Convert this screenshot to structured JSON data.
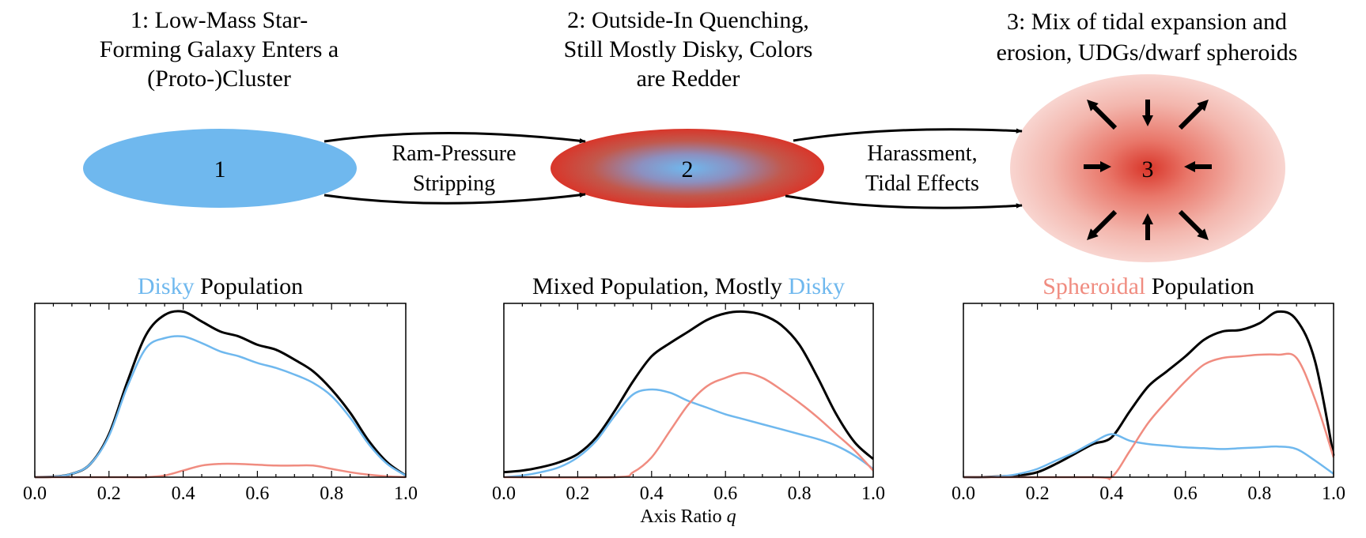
{
  "colors": {
    "disky": "#6fb8ee",
    "spheroidal": "#f08c80",
    "total": "#000000",
    "red_core": "#d9362a"
  },
  "stages": [
    {
      "number": "1",
      "title_lines": [
        "1: Low-Mass Star-",
        "Forming Galaxy Enters a",
        "(Proto-)Cluster"
      ]
    },
    {
      "number": "2",
      "title_lines": [
        "2: Outside-In Quenching,",
        "Still Mostly Disky, Colors",
        "are Redder"
      ]
    },
    {
      "number": "3",
      "title_lines": [
        "3: Mix of tidal expansion and",
        "erosion, UDGs/dwarf spheroids"
      ]
    }
  ],
  "transitions": [
    {
      "lines": [
        "Ram-Pressure",
        "Stripping"
      ]
    },
    {
      "lines": [
        "Harassment,",
        "Tidal Effects"
      ]
    }
  ],
  "x_axis_label": "Axis Ratio",
  "x_axis_symbol": "q",
  "chart_data": [
    {
      "type": "line",
      "title_parts": [
        {
          "text": "Disky",
          "color": "disky"
        },
        {
          "text": " Population",
          "color": "total"
        }
      ],
      "xlim": [
        0.0,
        1.0
      ],
      "ylim": [
        0,
        1.05
      ],
      "xticks": [
        "0.0",
        "0.2",
        "0.4",
        "0.6",
        "0.8",
        "1.0"
      ],
      "series": [
        {
          "color": "total",
          "x": [
            0.0,
            0.05,
            0.1,
            0.15,
            0.2,
            0.25,
            0.3,
            0.35,
            0.4,
            0.45,
            0.5,
            0.55,
            0.6,
            0.65,
            0.7,
            0.75,
            0.8,
            0.85,
            0.9,
            0.95,
            1.0
          ],
          "y": [
            0.0,
            0.003,
            0.02,
            0.08,
            0.26,
            0.58,
            0.86,
            0.98,
            1.0,
            0.94,
            0.88,
            0.85,
            0.8,
            0.77,
            0.71,
            0.64,
            0.53,
            0.39,
            0.22,
            0.09,
            0.01
          ]
        },
        {
          "color": "disky",
          "x": [
            0.0,
            0.05,
            0.1,
            0.15,
            0.2,
            0.25,
            0.3,
            0.35,
            0.4,
            0.45,
            0.5,
            0.55,
            0.6,
            0.65,
            0.7,
            0.75,
            0.8,
            0.85,
            0.9,
            0.95,
            1.0
          ],
          "y": [
            0.0,
            0.003,
            0.02,
            0.08,
            0.25,
            0.55,
            0.78,
            0.84,
            0.85,
            0.81,
            0.76,
            0.73,
            0.69,
            0.66,
            0.62,
            0.57,
            0.49,
            0.36,
            0.2,
            0.08,
            0.01
          ]
        },
        {
          "color": "spheroidal",
          "x": [
            0.0,
            0.2,
            0.25,
            0.3,
            0.35,
            0.4,
            0.45,
            0.5,
            0.55,
            0.6,
            0.65,
            0.7,
            0.75,
            0.8,
            0.85,
            0.9,
            0.95,
            1.0
          ],
          "y": [
            0.0,
            0.0,
            0.0,
            0.0,
            0.01,
            0.04,
            0.07,
            0.08,
            0.08,
            0.075,
            0.07,
            0.07,
            0.07,
            0.05,
            0.03,
            0.015,
            0.005,
            0.0
          ]
        }
      ]
    },
    {
      "type": "line",
      "title_parts": [
        {
          "text": "Mixed Population, Mostly ",
          "color": "total"
        },
        {
          "text": "Disky",
          "color": "disky"
        }
      ],
      "xlim": [
        0.0,
        1.0
      ],
      "ylim": [
        0,
        1.05
      ],
      "xticks": [
        "0.0",
        "0.2",
        "0.4",
        "0.6",
        "0.8",
        "1.0"
      ],
      "series": [
        {
          "color": "total",
          "x": [
            0.0,
            0.05,
            0.1,
            0.15,
            0.2,
            0.25,
            0.3,
            0.35,
            0.4,
            0.45,
            0.5,
            0.55,
            0.6,
            0.65,
            0.7,
            0.75,
            0.8,
            0.85,
            0.9,
            0.95,
            1.0
          ],
          "y": [
            0.03,
            0.04,
            0.06,
            0.09,
            0.14,
            0.24,
            0.4,
            0.58,
            0.73,
            0.81,
            0.88,
            0.95,
            0.99,
            1.0,
            0.98,
            0.92,
            0.8,
            0.6,
            0.38,
            0.21,
            0.11
          ]
        },
        {
          "color": "disky",
          "x": [
            0.0,
            0.05,
            0.1,
            0.15,
            0.2,
            0.25,
            0.3,
            0.35,
            0.4,
            0.45,
            0.5,
            0.55,
            0.6,
            0.65,
            0.7,
            0.75,
            0.8,
            0.85,
            0.9,
            0.95,
            1.0
          ],
          "y": [
            0.0,
            0.01,
            0.03,
            0.06,
            0.12,
            0.22,
            0.37,
            0.5,
            0.53,
            0.51,
            0.46,
            0.42,
            0.38,
            0.35,
            0.32,
            0.29,
            0.26,
            0.23,
            0.19,
            0.13,
            0.05
          ]
        },
        {
          "color": "spheroidal",
          "x": [
            0.0,
            0.3,
            0.35,
            0.4,
            0.45,
            0.5,
            0.55,
            0.6,
            0.65,
            0.7,
            0.75,
            0.8,
            0.85,
            0.9,
            0.95,
            1.0
          ],
          "y": [
            0.0,
            0.0,
            0.03,
            0.12,
            0.28,
            0.44,
            0.55,
            0.6,
            0.63,
            0.6,
            0.53,
            0.45,
            0.36,
            0.26,
            0.16,
            0.04
          ]
        }
      ]
    },
    {
      "type": "line",
      "title_parts": [
        {
          "text": "Spheroidal",
          "color": "spheroidal"
        },
        {
          "text": " Population",
          "color": "total"
        }
      ],
      "xlim": [
        0.0,
        1.0
      ],
      "ylim": [
        0,
        1.05
      ],
      "xticks": [
        "0.0",
        "0.2",
        "0.4",
        "0.6",
        "0.8",
        "1.0"
      ],
      "series": [
        {
          "color": "total",
          "x": [
            0.0,
            0.05,
            0.1,
            0.15,
            0.2,
            0.25,
            0.3,
            0.35,
            0.4,
            0.45,
            0.5,
            0.55,
            0.6,
            0.65,
            0.7,
            0.75,
            0.8,
            0.85,
            0.9,
            0.95,
            1.0
          ],
          "y": [
            0.0,
            0.0,
            0.005,
            0.01,
            0.03,
            0.08,
            0.14,
            0.2,
            0.24,
            0.4,
            0.55,
            0.64,
            0.73,
            0.83,
            0.88,
            0.89,
            0.93,
            1.0,
            0.95,
            0.7,
            0.13
          ]
        },
        {
          "color": "disky",
          "x": [
            0.0,
            0.05,
            0.1,
            0.15,
            0.2,
            0.25,
            0.3,
            0.35,
            0.4,
            0.45,
            0.5,
            0.55,
            0.6,
            0.65,
            0.7,
            0.75,
            0.8,
            0.85,
            0.9,
            0.95,
            1.0
          ],
          "y": [
            0.0,
            0.0,
            0.005,
            0.02,
            0.05,
            0.1,
            0.15,
            0.21,
            0.26,
            0.22,
            0.2,
            0.19,
            0.18,
            0.175,
            0.17,
            0.175,
            0.18,
            0.185,
            0.17,
            0.1,
            0.02
          ]
        },
        {
          "color": "spheroidal",
          "x": [
            0.0,
            0.35,
            0.4,
            0.45,
            0.5,
            0.55,
            0.6,
            0.65,
            0.7,
            0.75,
            0.8,
            0.85,
            0.9,
            0.95,
            1.0
          ],
          "y": [
            0.0,
            0.0,
            0.0,
            0.16,
            0.33,
            0.46,
            0.58,
            0.68,
            0.72,
            0.73,
            0.74,
            0.74,
            0.72,
            0.47,
            0.12
          ]
        }
      ]
    }
  ]
}
